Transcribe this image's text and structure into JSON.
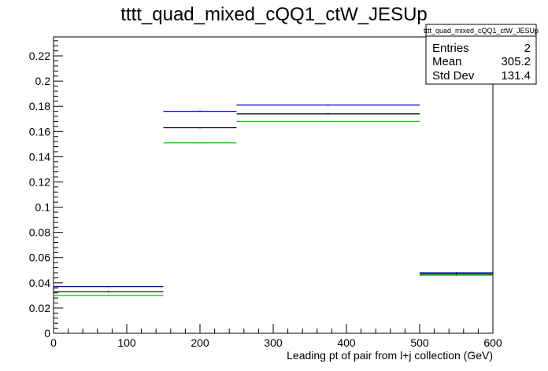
{
  "chart_data": {
    "type": "step",
    "title": "tttt_quad_mixed_cQQ1_ctW_JESUp",
    "xlabel": "Leading pt of pair from l+j collection (GeV)",
    "ylabel": "",
    "xlim": [
      0,
      600
    ],
    "ylim": [
      0,
      0.235
    ],
    "x_ticks": [
      "0",
      "100",
      "200",
      "300",
      "400",
      "500",
      "600"
    ],
    "y_ticks": [
      "0",
      "0.02",
      "0.04",
      "0.06",
      "0.08",
      "0.1",
      "0.12",
      "0.14",
      "0.16",
      "0.18",
      "0.2",
      "0.22"
    ],
    "bin_edges": [
      0,
      150,
      250,
      500,
      600
    ],
    "series": [
      {
        "color": "#0000cc",
        "values": [
          0.037,
          0.176,
          0.181,
          0.048
        ]
      },
      {
        "color": "#000000",
        "values": [
          0.033,
          0.163,
          0.174,
          0.047
        ]
      },
      {
        "color": "#00cc00",
        "values": [
          0.03,
          0.151,
          0.168,
          0.046
        ]
      }
    ],
    "stats_box": {
      "title": "tttt_quad_mixed_cQQ1_ctW_JESUp",
      "rows": [
        {
          "label": "Entries",
          "value": "2"
        },
        {
          "label": "Mean",
          "value": "305.2"
        },
        {
          "label": "Std Dev",
          "value": "131.4"
        }
      ]
    },
    "grid": false
  }
}
